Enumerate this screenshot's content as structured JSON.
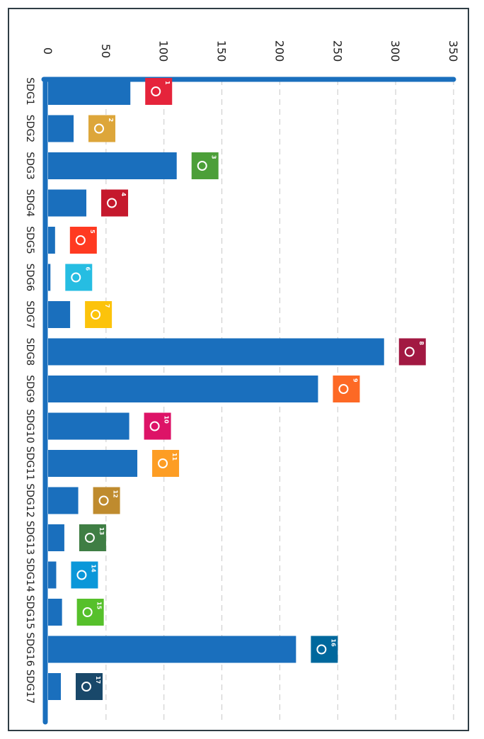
{
  "chart_data": {
    "type": "bar",
    "orientation": "horizontal",
    "title": "",
    "xlabel": "",
    "ylabel": "",
    "xlim": [
      0,
      350
    ],
    "xticks": [
      0,
      50,
      100,
      150,
      200,
      250,
      300,
      350
    ],
    "xtick_labels": [
      "0",
      "50",
      "100",
      "150",
      "200",
      "250",
      "300",
      "350"
    ],
    "grid": true,
    "categories": [
      "SDG1",
      "SDG2",
      "SDG3",
      "SDG4",
      "SDG5",
      "SDG6",
      "SDG7",
      "SDG8",
      "SDG9",
      "SDG10",
      "SDG11",
      "SDG12",
      "SDG13",
      "SDG14",
      "SDG15",
      "SDG16",
      "SDG17"
    ],
    "values": [
      71,
      22,
      111,
      33,
      6,
      2,
      19,
      290,
      233,
      70,
      77,
      26,
      14,
      7,
      12,
      214,
      11
    ],
    "bar_color": "#1a6fbd",
    "icons": [
      {
        "number": "1",
        "name": "no-poverty-icon",
        "color": "#e5243b"
      },
      {
        "number": "2",
        "name": "zero-hunger-icon",
        "color": "#dda63a"
      },
      {
        "number": "3",
        "name": "good-health-icon",
        "color": "#4c9f38"
      },
      {
        "number": "4",
        "name": "quality-education-icon",
        "color": "#c5192d"
      },
      {
        "number": "5",
        "name": "gender-equality-icon",
        "color": "#ff3a21"
      },
      {
        "number": "6",
        "name": "clean-water-icon",
        "color": "#26bde2"
      },
      {
        "number": "7",
        "name": "clean-energy-icon",
        "color": "#fcc30b"
      },
      {
        "number": "8",
        "name": "decent-work-icon",
        "color": "#a21942"
      },
      {
        "number": "9",
        "name": "industry-innovation-icon",
        "color": "#fd6925"
      },
      {
        "number": "10",
        "name": "reduced-inequalities-icon",
        "color": "#dd1367"
      },
      {
        "number": "11",
        "name": "sustainable-cities-icon",
        "color": "#fd9d24"
      },
      {
        "number": "12",
        "name": "responsible-consumption-icon",
        "color": "#bf8b2e"
      },
      {
        "number": "13",
        "name": "climate-action-icon",
        "color": "#3f7e44"
      },
      {
        "number": "14",
        "name": "life-below-water-icon",
        "color": "#0a97d9"
      },
      {
        "number": "15",
        "name": "life-on-land-icon",
        "color": "#56c02b"
      },
      {
        "number": "16",
        "name": "peace-justice-icon",
        "color": "#00689d"
      },
      {
        "number": "17",
        "name": "partnerships-icon",
        "color": "#19486a"
      }
    ]
  }
}
